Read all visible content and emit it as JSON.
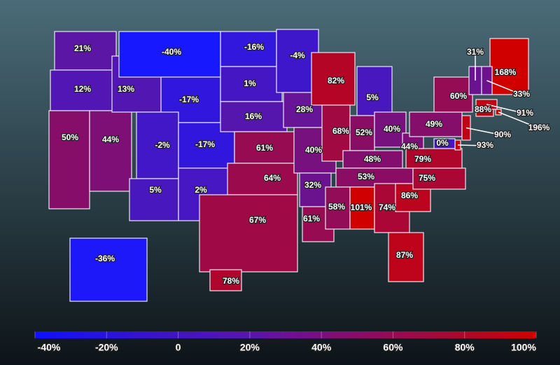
{
  "map": {
    "states": [
      {
        "value": 21,
        "label": "21%"
      },
      {
        "value": 12,
        "label": "12%"
      },
      {
        "value": 50,
        "label": "50%"
      },
      {
        "value": 44,
        "label": "44%"
      },
      {
        "value": 13,
        "label": "13%"
      },
      {
        "value": -40,
        "label": "-40%"
      },
      {
        "value": -17,
        "label": "-17%"
      },
      {
        "value": -2,
        "label": "-2%"
      },
      {
        "value": -17,
        "label": "-17%"
      },
      {
        "value": 5,
        "label": "5%"
      },
      {
        "value": 2,
        "label": "2%"
      },
      {
        "value": -16,
        "label": "-16%"
      },
      {
        "value": 1,
        "label": "1%"
      },
      {
        "value": 16,
        "label": "16%"
      },
      {
        "value": 61,
        "label": "61%"
      },
      {
        "value": 64,
        "label": "64%"
      },
      {
        "value": 67,
        "label": "67%"
      },
      {
        "value": -4,
        "label": "-4%"
      },
      {
        "value": 28,
        "label": "28%"
      },
      {
        "value": 40,
        "label": "40%"
      },
      {
        "value": 32,
        "label": "32%"
      },
      {
        "value": 61,
        "label": "61%"
      },
      {
        "value": 82,
        "label": "82%"
      },
      {
        "value": 68,
        "label": "68%"
      },
      {
        "value": 5,
        "label": "5%"
      },
      {
        "value": 52,
        "label": "52%"
      },
      {
        "value": 40,
        "label": "40%"
      },
      {
        "value": 48,
        "label": "48%"
      },
      {
        "value": 53,
        "label": "53%"
      },
      {
        "value": 58,
        "label": "58%"
      },
      {
        "value": 101,
        "label": "101%"
      },
      {
        "value": 74,
        "label": "74%"
      },
      {
        "value": 87,
        "label": "87%"
      },
      {
        "value": 86,
        "label": "86%"
      },
      {
        "value": 75,
        "label": "75%"
      },
      {
        "value": 79,
        "label": "79%"
      },
      {
        "value": 44,
        "label": "44%"
      },
      {
        "value": 49,
        "label": "49%"
      },
      {
        "value": 60,
        "label": "60%"
      },
      {
        "value": 31,
        "label": "31%"
      },
      {
        "value": 168,
        "label": "168%"
      },
      {
        "value": 33,
        "label": "33%"
      },
      {
        "value": 91,
        "label": "91%"
      },
      {
        "value": 196,
        "label": "196%"
      },
      {
        "value": 88,
        "label": "88%"
      },
      {
        "value": 90,
        "label": "90%"
      },
      {
        "value": 93,
        "label": "93%"
      },
      {
        "value": 0,
        "label": "0%"
      },
      {
        "value": -36,
        "label": "-36%"
      },
      {
        "value": 78,
        "label": "78%"
      }
    ],
    "legend": {
      "range": [
        -40,
        100
      ],
      "ticks": [
        {
          "value": -40,
          "label": "-40%"
        },
        {
          "value": -20,
          "label": "-20%"
        },
        0,
        {
          "value": 20,
          "label": "20%"
        },
        {
          "value": 40,
          "label": "40%"
        },
        {
          "value": 60,
          "label": "60%"
        },
        {
          "value": 80,
          "label": "80%"
        },
        {
          "value": 100,
          "label": "100%"
        }
      ]
    }
  }
}
